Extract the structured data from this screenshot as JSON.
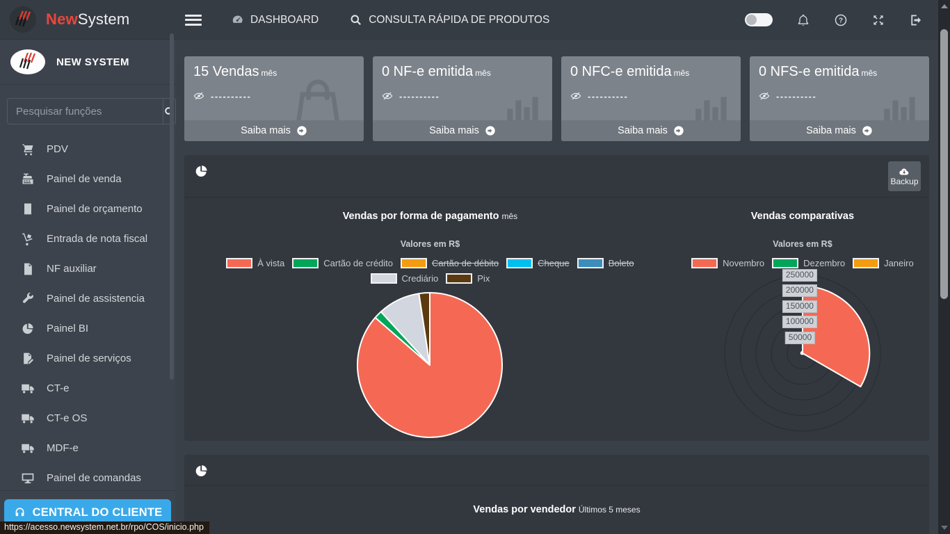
{
  "brand": {
    "name_red": "New",
    "name_rest": "System",
    "org_name": "NEW SYSTEM"
  },
  "sidebar": {
    "search_placeholder": "Pesquisar funções",
    "items": [
      {
        "label": "PDV",
        "icon": "cart-icon"
      },
      {
        "label": "Painel de venda",
        "icon": "register-icon"
      },
      {
        "label": "Painel de orçamento",
        "icon": "receipt-icon"
      },
      {
        "label": "Entrada de nota fiscal",
        "icon": "dolly-icon"
      },
      {
        "label": "NF auxiliar",
        "icon": "file-icon"
      },
      {
        "label": "Painel de assistencia",
        "icon": "wrench-icon"
      },
      {
        "label": "Painel BI",
        "icon": "pie-icon"
      },
      {
        "label": "Painel de serviços",
        "icon": "file-pen-icon"
      },
      {
        "label": "CT-e",
        "icon": "truck-icon"
      },
      {
        "label": "CT-e OS",
        "icon": "truck-icon"
      },
      {
        "label": "MDF-e",
        "icon": "truck-icon"
      },
      {
        "label": "Painel de comandas",
        "icon": "desktop-icon"
      }
    ],
    "central_button": "CENTRAL DO CLIENTE"
  },
  "topbar": {
    "dashboard_label": "DASHBOARD",
    "quick_search_label": "CONSULTA RÁPIDA DE PRODUTOS"
  },
  "cards": [
    {
      "value": "15",
      "title": "Vendas",
      "suffix": "mês",
      "masked_value": "----------",
      "ghost_icon": "shopping-bag-icon",
      "link_label": "Saiba mais"
    },
    {
      "value": "0",
      "title": "NF-e emitida",
      "suffix": "mês",
      "masked_value": "----------",
      "ghost_icon": "bar-chart-icon",
      "link_label": "Saiba mais"
    },
    {
      "value": "0",
      "title": "NFC-e emitida",
      "suffix": "mês",
      "masked_value": "----------",
      "ghost_icon": "bar-chart-icon",
      "link_label": "Saiba mais"
    },
    {
      "value": "0",
      "title": "NFS-e emitida",
      "suffix": "mês",
      "masked_value": "----------",
      "ghost_icon": "bar-chart-icon",
      "link_label": "Saiba mais"
    }
  ],
  "panel1": {
    "backup_label": "Backup"
  },
  "chart_data": [
    {
      "type": "pie",
      "title": "Vendas por forma de pagamento",
      "subtitle": "mês",
      "unit_label": "Valores em R$",
      "legend_position": "top",
      "slices": [
        {
          "label": "À vista",
          "color": "#f56954",
          "pct": 86.4,
          "hidden": false
        },
        {
          "label": "Cartão de crédito",
          "color": "#00a65a",
          "pct": 1.8,
          "hidden": false
        },
        {
          "label": "Cartão de débito",
          "color": "#f39c12",
          "pct": 0,
          "hidden": true
        },
        {
          "label": "Cheque",
          "color": "#00c0ef",
          "pct": 0,
          "hidden": true
        },
        {
          "label": "Boleto",
          "color": "#3c8dbc",
          "pct": 0,
          "hidden": true
        },
        {
          "label": "Crediário",
          "color": "#d2d6de",
          "pct": 9.4,
          "hidden": false
        },
        {
          "label": "Pix",
          "color": "#5b3a10",
          "pct": 2.4,
          "hidden": false
        }
      ]
    },
    {
      "type": "polarArea",
      "title": "Vendas comparativas",
      "unit_label": "Valores em R$",
      "rings": [
        50000,
        100000,
        150000,
        200000,
        250000
      ],
      "rmax": 250000,
      "series": [
        {
          "label": "Novembro",
          "color": "#f56954",
          "value": 215000
        },
        {
          "label": "Dezembro",
          "color": "#00a65a",
          "value": 1000
        },
        {
          "label": "Janeiro",
          "color": "#f39c12",
          "value": 5000
        }
      ]
    },
    {
      "type": "bar",
      "title": "Vendas por vendedor",
      "subtitle": "Últimos 5 meses",
      "note_visible_portion": "title only; chart body cut off by viewport"
    }
  ],
  "statusbar": {
    "url": "https://acesso.newsystem.net.br/rpo/COS/inicio.php"
  }
}
